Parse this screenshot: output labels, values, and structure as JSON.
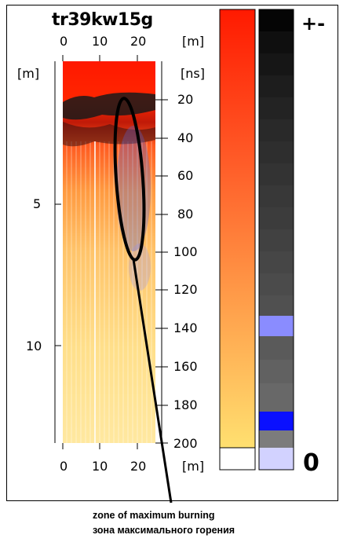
{
  "title": "tr39kw15g",
  "x_axis": {
    "top_ticks": [
      "0",
      "10",
      "20"
    ],
    "bottom_ticks": [
      "0",
      "10",
      "20"
    ],
    "top_unit": "[m]",
    "bottom_unit": "[m]"
  },
  "depth_axis": {
    "unit": "[m]",
    "ticks": [
      "5",
      "10"
    ]
  },
  "time_axis": {
    "unit": "[ns]",
    "ticks": [
      "20",
      "40",
      "60",
      "80",
      "100",
      "120",
      "140",
      "160",
      "180",
      "200"
    ]
  },
  "color_scales": {
    "signs_label": "+-",
    "zero_label": "0",
    "red_yellow_scale": "red-orange-yellow gradient",
    "gray_scale": "black to gray steps with blue highlights",
    "colors": {
      "red": "#ff1a00",
      "orange": "#ff9a3a",
      "yellow": "#ffe26a",
      "blue": "#0a10ff",
      "light_blue": "#8a8cff"
    }
  },
  "annotation": {
    "caption_en": "zone of maximum burning",
    "caption_ru": "зона максимального горения"
  }
}
